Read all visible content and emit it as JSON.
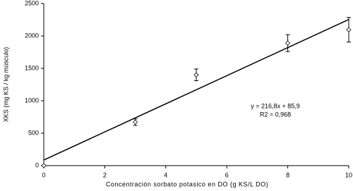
{
  "chart_data": {
    "type": "scatter",
    "x_label": "Concentración sorbato potasico en DO (g KS/L DO)",
    "y_label": "XKS (mg KS / kg músculo)",
    "series": [
      {
        "color": "#000000",
        "x": [
          0,
          3,
          5,
          8,
          10
        ],
        "values": [
          0,
          670,
          1400,
          1890,
          2095
        ],
        "errors": [
          null,
          50,
          90,
          130,
          190
        ]
      }
    ],
    "trendline": {
      "slope": 216.8,
      "intercept": 85.9,
      "label": "y = 216,8x + 85,9",
      "r2_label": "R2 = 0,968"
    },
    "xlim": [
      0,
      10
    ],
    "xticks": [
      0,
      2,
      4,
      6,
      8,
      10
    ],
    "ylim": [
      0,
      2500
    ],
    "yticks": [
      0,
      500,
      1000,
      1500,
      2000,
      2500
    ],
    "grid": false
  }
}
